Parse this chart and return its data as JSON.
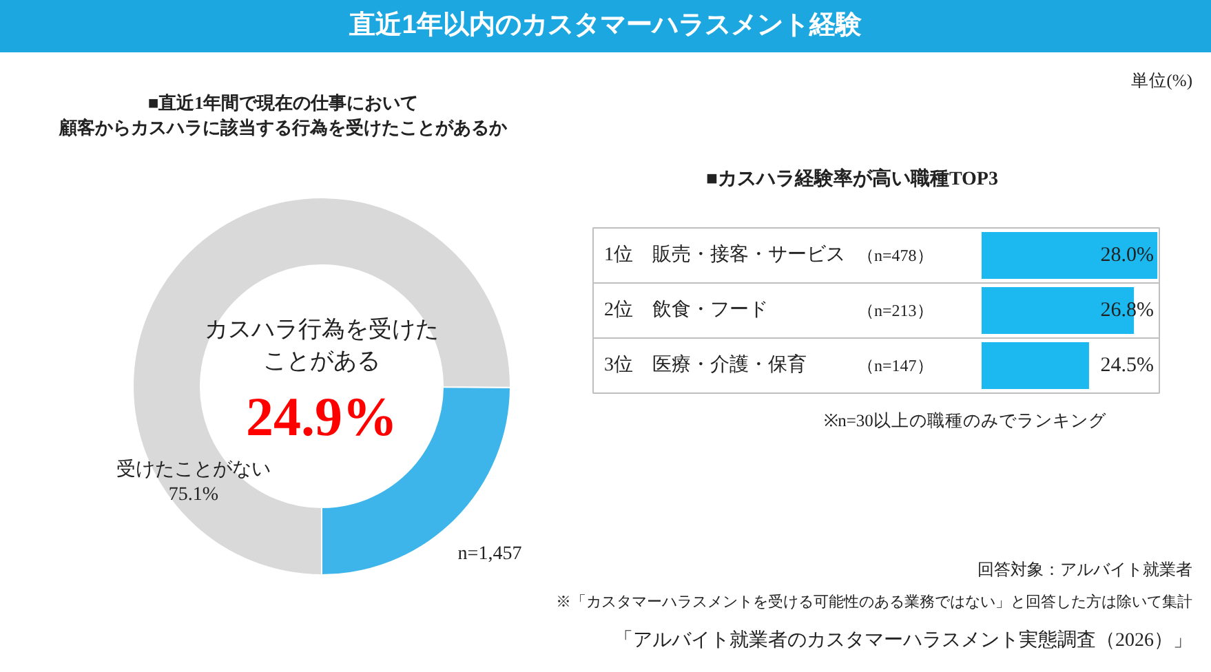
{
  "chart_data": [
    {
      "type": "donut",
      "title": "直近1年以内のカスタマーハラスメント経験",
      "subtitle": "■直近1年間で現在の仕事において顧客からカスハラに該当する行為を受けたことがあるか",
      "categories": [
        "カスハラ行為を受けたことがある",
        "受けたことがない"
      ],
      "values": [
        24.9,
        75.1
      ],
      "colors": [
        "#3db5ea",
        "#d9d9d9"
      ],
      "value_labels": [
        "24.9%",
        "75.1%"
      ],
      "annotations": [
        "n=1,457"
      ]
    },
    {
      "type": "bar",
      "orientation": "horizontal",
      "title": "■カスハラ経験率が高い職種TOP3",
      "categories": [
        "1位　販売・接客・サービス",
        "2位　飲食・フード",
        "3位　医療・介護・保育"
      ],
      "values": [
        28.0,
        26.8,
        24.5
      ],
      "colors": [
        "#1cb8f0",
        "#1cb8f0",
        "#1cb8f0"
      ],
      "value_labels": [
        "28.0%",
        "26.8%",
        "24.5%"
      ],
      "xlim": [
        19,
        28.1
      ],
      "tick_labels": false,
      "annotations": [
        "（n=478）",
        "（n=213）",
        "（n=147）",
        "単位(%)",
        "※n=30以上の職種のみでランキング",
        "回答対象：アルバイト就業者",
        "※「カスタマーハラスメントを受ける可能性のある業務ではない」と回答した方は除いて集計",
        "「アルバイト就業者のカスタマーハラスメント実態調査（2026）」"
      ]
    }
  ]
}
